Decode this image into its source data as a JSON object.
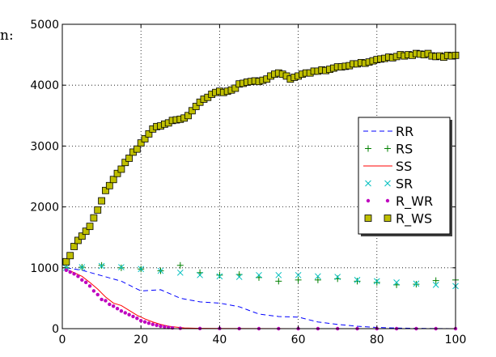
{
  "page": {
    "fragment_text": "n:"
  },
  "chart_data": {
    "type": "line",
    "title": "",
    "xlabel": "",
    "ylabel": "",
    "xlim": [
      0,
      100
    ],
    "ylim": [
      0,
      5000
    ],
    "xticks": [
      0,
      20,
      40,
      60,
      80,
      100
    ],
    "yticks": [
      0,
      1000,
      2000,
      3000,
      4000,
      5000
    ],
    "xtick_labels": [
      "0",
      "20",
      "40",
      "60",
      "80",
      "100"
    ],
    "ytick_labels": [
      "0",
      "1000",
      "2000",
      "3000",
      "4000",
      "5000"
    ],
    "grid": true,
    "legend_position": "center-right",
    "series": [
      {
        "name": "RR",
        "style": "dashed-line",
        "color": "#0000ff",
        "x": [
          1,
          5,
          10,
          15,
          20,
          25,
          30,
          35,
          40,
          45,
          50,
          55,
          60,
          65,
          70,
          75,
          80,
          85,
          90,
          95,
          100
        ],
        "y": [
          1000,
          960,
          870,
          780,
          620,
          640,
          500,
          440,
          420,
          360,
          240,
          200,
          190,
          110,
          70,
          40,
          20,
          10,
          5,
          2,
          0
        ]
      },
      {
        "name": "RS",
        "style": "plus-markers",
        "color": "#008000",
        "x": [
          1,
          5,
          10,
          15,
          20,
          25,
          30,
          35,
          40,
          45,
          50,
          55,
          60,
          65,
          70,
          75,
          80,
          85,
          90,
          95,
          100
        ],
        "y": [
          1000,
          1010,
          1040,
          1000,
          980,
          950,
          1040,
          920,
          880,
          890,
          840,
          780,
          800,
          800,
          820,
          780,
          760,
          720,
          730,
          790,
          800
        ]
      },
      {
        "name": "SS",
        "style": "solid-line",
        "color": "#ff0000",
        "x": [
          1,
          3,
          5,
          7,
          9,
          11,
          13,
          15,
          17,
          19,
          21,
          23,
          25,
          27,
          29,
          31,
          33,
          35,
          40,
          50,
          60,
          70,
          80,
          90,
          100
        ],
        "y": [
          980,
          920,
          860,
          760,
          650,
          520,
          420,
          380,
          300,
          220,
          160,
          110,
          70,
          40,
          25,
          12,
          8,
          5,
          3,
          1,
          0,
          0,
          0,
          0,
          0
        ]
      },
      {
        "name": "SR",
        "style": "x-markers",
        "color": "#00bfbf",
        "x": [
          1,
          5,
          10,
          15,
          20,
          25,
          30,
          35,
          40,
          45,
          50,
          55,
          60,
          65,
          70,
          75,
          80,
          85,
          90,
          95,
          100
        ],
        "y": [
          1000,
          1010,
          1030,
          1010,
          980,
          950,
          920,
          880,
          860,
          850,
          880,
          880,
          880,
          860,
          850,
          800,
          780,
          760,
          740,
          720,
          700
        ]
      },
      {
        "name": "R_WR",
        "style": "dot-markers",
        "color": "#bf00bf",
        "x": [
          1,
          2,
          3,
          4,
          5,
          6,
          7,
          8,
          9,
          10,
          11,
          12,
          13,
          14,
          15,
          16,
          17,
          18,
          19,
          20,
          21,
          22,
          23,
          24,
          25,
          26,
          27,
          28,
          30,
          35,
          40,
          45,
          50,
          55,
          60,
          65,
          70,
          75,
          80,
          85,
          90,
          95,
          100
        ],
        "y": [
          960,
          930,
          900,
          860,
          800,
          760,
          700,
          620,
          560,
          480,
          460,
          400,
          370,
          330,
          290,
          260,
          230,
          200,
          170,
          130,
          110,
          90,
          70,
          55,
          40,
          30,
          20,
          12,
          6,
          3,
          2,
          1,
          0,
          0,
          0,
          0,
          0,
          0,
          0,
          0,
          0,
          0,
          0
        ]
      },
      {
        "name": "R_WS",
        "style": "square-markers",
        "color": "#bfbf00",
        "x": [
          1,
          2,
          3,
          4,
          5,
          6,
          7,
          8,
          9,
          10,
          11,
          12,
          13,
          14,
          15,
          16,
          17,
          18,
          19,
          20,
          21,
          22,
          23,
          24,
          25,
          26,
          27,
          28,
          29,
          30,
          31,
          32,
          33,
          34,
          35,
          36,
          37,
          38,
          39,
          40,
          41,
          42,
          43,
          44,
          45,
          46,
          47,
          48,
          49,
          50,
          51,
          52,
          53,
          54,
          55,
          56,
          57,
          58,
          59,
          60,
          61,
          62,
          63,
          64,
          65,
          66,
          67,
          68,
          69,
          70,
          71,
          72,
          73,
          74,
          75,
          76,
          77,
          78,
          79,
          80,
          81,
          82,
          83,
          84,
          85,
          86,
          87,
          88,
          89,
          90,
          91,
          92,
          93,
          94,
          95,
          96,
          97,
          98,
          99,
          100
        ],
        "y": [
          1100,
          1200,
          1350,
          1450,
          1520,
          1600,
          1680,
          1820,
          1950,
          2100,
          2270,
          2350,
          2450,
          2550,
          2620,
          2730,
          2800,
          2900,
          2950,
          3050,
          3120,
          3200,
          3280,
          3320,
          3330,
          3360,
          3380,
          3420,
          3430,
          3440,
          3460,
          3500,
          3580,
          3650,
          3720,
          3770,
          3800,
          3850,
          3880,
          3900,
          3880,
          3900,
          3920,
          3950,
          4020,
          4030,
          4050,
          4060,
          4070,
          4060,
          4080,
          4100,
          4150,
          4180,
          4200,
          4180,
          4150,
          4100,
          4130,
          4150,
          4180,
          4200,
          4200,
          4230,
          4230,
          4250,
          4240,
          4260,
          4280,
          4300,
          4300,
          4310,
          4320,
          4350,
          4350,
          4370,
          4360,
          4380,
          4400,
          4420,
          4430,
          4440,
          4460,
          4450,
          4470,
          4500,
          4480,
          4500,
          4490,
          4520,
          4510,
          4500,
          4520,
          4480,
          4470,
          4480,
          4460,
          4490,
          4480,
          4490
        ]
      }
    ]
  }
}
